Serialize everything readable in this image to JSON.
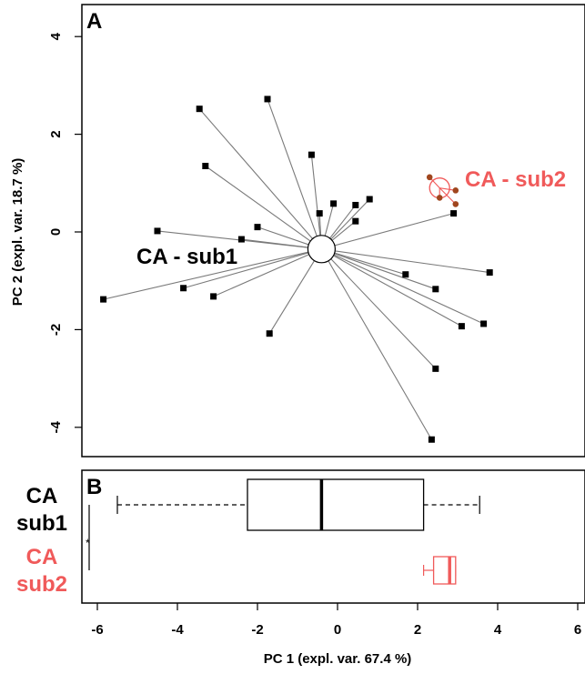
{
  "panels": {
    "a_label": "A",
    "b_label": "B"
  },
  "axes": {
    "x_label": "PC 1 (expl. var. 67.4 %)",
    "y_label": "PC 2 (expl. var. 18.7 %)"
  },
  "groups": {
    "sub1_label": "CA - sub1",
    "sub2_label": "CA - sub2",
    "b_sub1_line1": "CA",
    "b_sub1_line2": "sub1",
    "b_sub2_line1": "CA",
    "b_sub2_line2": "sub2",
    "significance": "*"
  },
  "colors": {
    "sub1": "#000000",
    "sub2": "#f05a5a",
    "sub2_point": "#a0461e",
    "spoke": "#7a7a7a"
  },
  "chart_data": [
    {
      "type": "scatter",
      "panel": "A",
      "xlim": [
        -6.3,
        6.3
      ],
      "ylim": [
        -4.6,
        4.6
      ],
      "x_ticks": [
        -6,
        -4,
        -2,
        0,
        2,
        4,
        6
      ],
      "y_ticks": [
        -4,
        -2,
        0,
        2,
        4
      ],
      "x_tick_labels": [
        "-6",
        "-4",
        "-2",
        "0",
        "2",
        "4",
        "6"
      ],
      "y_tick_labels": [
        "-4",
        "-2",
        "0",
        "2",
        "4"
      ],
      "xlabel": "PC 1 (expl. var. 67.4 %)",
      "ylabel": "PC 2 (expl. var. 18.7 %)",
      "grid": false,
      "series": [
        {
          "name": "CA - sub1",
          "centroid": [
            -0.4,
            -0.35
          ],
          "points": [
            [
              -5.85,
              -1.38
            ],
            [
              -4.5,
              0.02
            ],
            [
              -3.85,
              -1.15
            ],
            [
              -3.1,
              -1.32
            ],
            [
              -3.45,
              2.52
            ],
            [
              -3.3,
              1.35
            ],
            [
              -2.4,
              -0.15
            ],
            [
              -2.0,
              0.1
            ],
            [
              -1.75,
              2.72
            ],
            [
              -1.7,
              -2.08
            ],
            [
              -0.65,
              1.58
            ],
            [
              -0.45,
              0.38
            ],
            [
              -0.1,
              0.58
            ],
            [
              0.45,
              0.55
            ],
            [
              0.45,
              0.22
            ],
            [
              0.8,
              0.67
            ],
            [
              1.7,
              -0.87
            ],
            [
              2.45,
              -1.17
            ],
            [
              2.35,
              -4.25
            ],
            [
              2.45,
              -2.8
            ],
            [
              2.9,
              0.38
            ],
            [
              3.1,
              -1.93
            ],
            [
              3.65,
              -1.88
            ],
            [
              3.8,
              -0.83
            ]
          ]
        },
        {
          "name": "CA - sub2",
          "centroid": [
            2.55,
            0.9
          ],
          "points": [
            [
              2.3,
              1.12
            ],
            [
              2.55,
              0.7
            ],
            [
              2.95,
              0.85
            ],
            [
              2.95,
              0.57
            ]
          ]
        }
      ]
    },
    {
      "type": "box",
      "panel": "B",
      "xlim": [
        -6.3,
        6.3
      ],
      "x_ticks": [
        -6,
        -4,
        -2,
        0,
        2,
        4,
        6
      ],
      "x_tick_labels": [
        "-6",
        "-4",
        "-2",
        "0",
        "2",
        "4",
        "6"
      ],
      "xlabel": "PC 1 (expl. var. 67.4 %)",
      "series": [
        {
          "name": "CA - sub1",
          "min": -5.5,
          "q1": -2.25,
          "median": -0.4,
          "q3": 2.15,
          "max": 3.55
        },
        {
          "name": "CA - sub2",
          "min": 2.15,
          "q1": 2.4,
          "median": 2.8,
          "q3": 2.95,
          "max": 2.95
        }
      ],
      "annotations": [
        "*"
      ]
    }
  ]
}
